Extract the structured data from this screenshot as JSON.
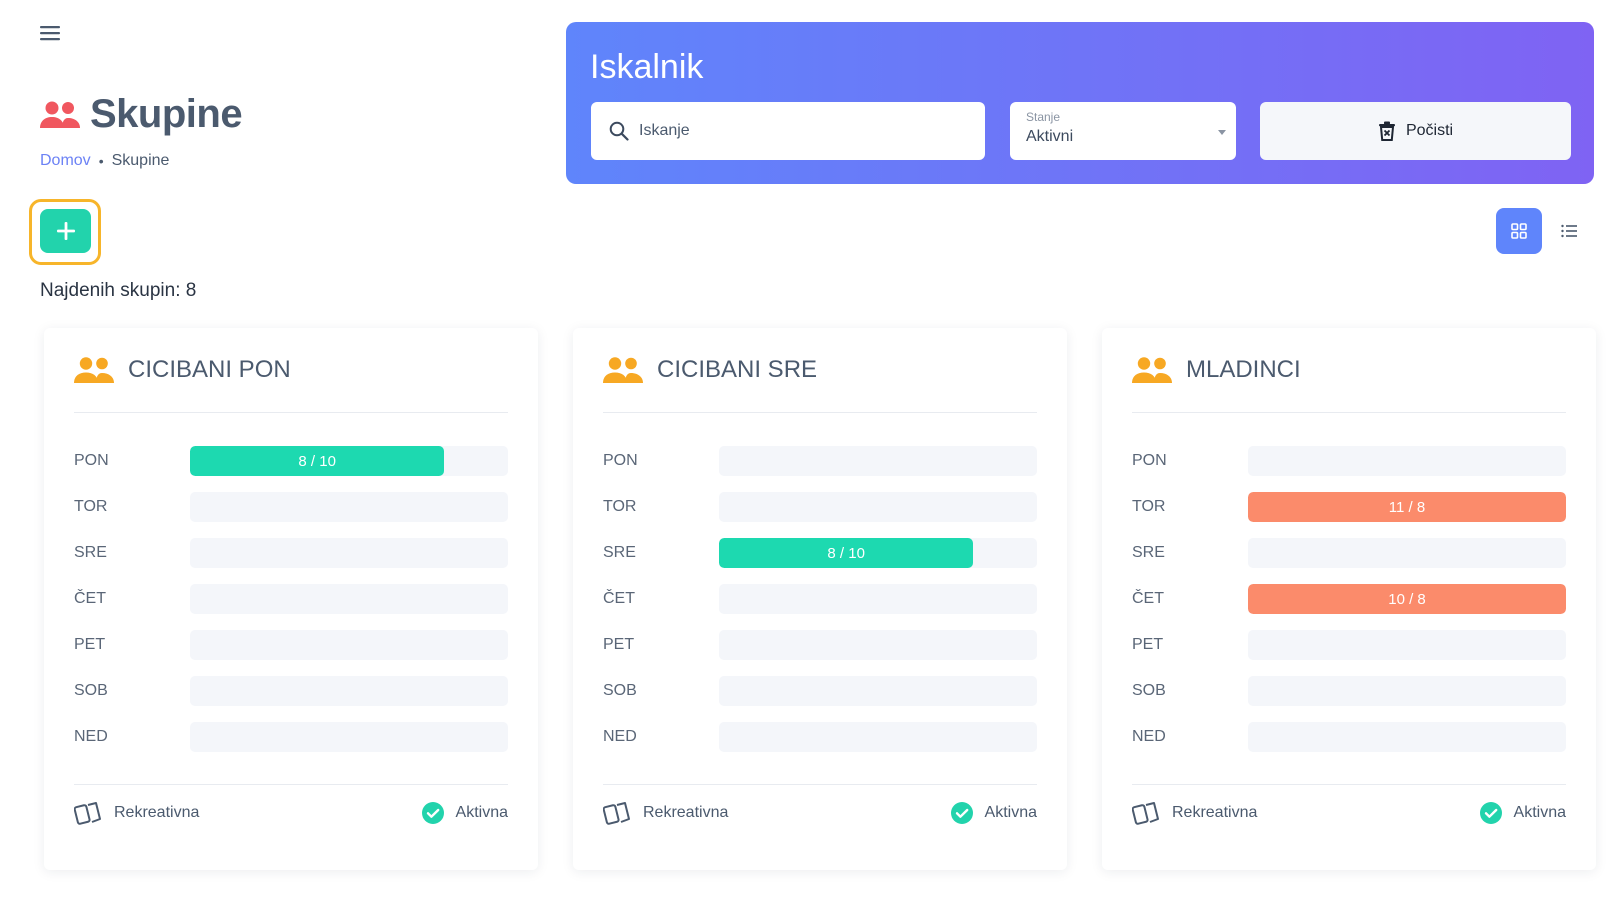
{
  "header": {
    "title": "Skupine",
    "breadcrumb": {
      "home": "Domov",
      "current": "Skupine"
    }
  },
  "actions": {
    "found_text": "Najdenih skupin: 8"
  },
  "search": {
    "title": "Iskalnik",
    "placeholder": "Iskanje",
    "state_label": "Stanje",
    "state_value": "Aktivni",
    "clear_label": "Počisti"
  },
  "colors": {
    "ok": "#1dd9b0",
    "over": "#fb8b6b",
    "accent": "#5f85fb",
    "brand_icon": "#f0575f",
    "group_icon": "#f7a823"
  },
  "groups": [
    {
      "name": "CICIBANI PON",
      "type": "Rekreativna",
      "status": "Aktivna",
      "days": [
        {
          "label": "PON",
          "text": "8 / 10",
          "fill": 0.8,
          "over": false
        },
        {
          "label": "TOR",
          "text": "",
          "fill": 0,
          "over": false
        },
        {
          "label": "SRE",
          "text": "",
          "fill": 0,
          "over": false
        },
        {
          "label": "ČET",
          "text": "",
          "fill": 0,
          "over": false
        },
        {
          "label": "PET",
          "text": "",
          "fill": 0,
          "over": false
        },
        {
          "label": "SOB",
          "text": "",
          "fill": 0,
          "over": false
        },
        {
          "label": "NED",
          "text": "",
          "fill": 0,
          "over": false
        }
      ]
    },
    {
      "name": "CICIBANI SRE",
      "type": "Rekreativna",
      "status": "Aktivna",
      "days": [
        {
          "label": "PON",
          "text": "",
          "fill": 0,
          "over": false
        },
        {
          "label": "TOR",
          "text": "",
          "fill": 0,
          "over": false
        },
        {
          "label": "SRE",
          "text": "8 / 10",
          "fill": 0.8,
          "over": false
        },
        {
          "label": "ČET",
          "text": "",
          "fill": 0,
          "over": false
        },
        {
          "label": "PET",
          "text": "",
          "fill": 0,
          "over": false
        },
        {
          "label": "SOB",
          "text": "",
          "fill": 0,
          "over": false
        },
        {
          "label": "NED",
          "text": "",
          "fill": 0,
          "over": false
        }
      ]
    },
    {
      "name": "MLADINCI",
      "type": "Rekreativna",
      "status": "Aktivna",
      "days": [
        {
          "label": "PON",
          "text": "",
          "fill": 0,
          "over": false
        },
        {
          "label": "TOR",
          "text": "11 / 8",
          "fill": 1,
          "over": true
        },
        {
          "label": "SRE",
          "text": "",
          "fill": 0,
          "over": false
        },
        {
          "label": "ČET",
          "text": "10 / 8",
          "fill": 1,
          "over": true
        },
        {
          "label": "PET",
          "text": "",
          "fill": 0,
          "over": false
        },
        {
          "label": "SOB",
          "text": "",
          "fill": 0,
          "over": false
        },
        {
          "label": "NED",
          "text": "",
          "fill": 0,
          "over": false
        }
      ]
    }
  ]
}
